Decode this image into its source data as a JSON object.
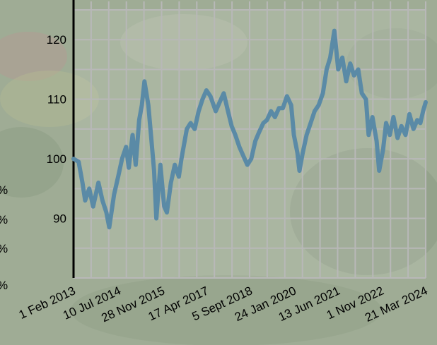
{
  "chart_data": {
    "type": "line",
    "title": "",
    "xlabel": "",
    "ylabel": "",
    "ylim": [
      80,
      125
    ],
    "xlim": [
      "2013-02-01",
      "2024-03-21"
    ],
    "y_ticks": [
      90,
      100,
      110,
      120
    ],
    "x_tick_labels": [
      "1 Feb 2013",
      "10 Jul 2014",
      "28 Nov 2015",
      "17 Apr 2017",
      "5 Sept 2018",
      "24 Jan 2020",
      "13 Jun 2021",
      "1 Nov 2022",
      "21 Mar 2024"
    ],
    "x_tick_dates": [
      "2013-02-01",
      "2014-07-10",
      "2015-11-28",
      "2017-04-17",
      "2018-09-05",
      "2020-01-24",
      "2021-06-13",
      "2022-11-01",
      "2024-03-21"
    ],
    "grid": true,
    "line_color": "#5a8aa6",
    "series": [
      {
        "points": [
          [
            "2013-02-01",
            100.0
          ],
          [
            "2013-04-01",
            99.5
          ],
          [
            "2013-05-15",
            96.0
          ],
          [
            "2013-06-15",
            93.0
          ],
          [
            "2013-08-01",
            95.0
          ],
          [
            "2013-09-15",
            92.0
          ],
          [
            "2013-11-15",
            96.0
          ],
          [
            "2014-01-01",
            93.0
          ],
          [
            "2014-02-15",
            91.0
          ],
          [
            "2014-03-20",
            88.5
          ],
          [
            "2014-05-15",
            94.0
          ],
          [
            "2014-07-01",
            97.0
          ],
          [
            "2014-08-15",
            100.0
          ],
          [
            "2014-10-01",
            102.0
          ],
          [
            "2014-11-01",
            98.5
          ],
          [
            "2014-12-15",
            104.0
          ],
          [
            "2015-01-20",
            99.0
          ],
          [
            "2015-03-01",
            106.5
          ],
          [
            "2015-04-01",
            109.0
          ],
          [
            "2015-05-01",
            113.0
          ],
          [
            "2015-06-15",
            109.0
          ],
          [
            "2015-07-15",
            104.0
          ],
          [
            "2015-08-20",
            98.0
          ],
          [
            "2015-09-15",
            90.0
          ],
          [
            "2015-11-01",
            99.0
          ],
          [
            "2015-12-15",
            92.0
          ],
          [
            "2016-01-15",
            91.0
          ],
          [
            "2016-03-01",
            96.0
          ],
          [
            "2016-04-15",
            99.0
          ],
          [
            "2016-06-01",
            97.0
          ],
          [
            "2016-07-01",
            100.0
          ],
          [
            "2016-09-01",
            105.0
          ],
          [
            "2016-10-15",
            106.0
          ],
          [
            "2016-12-01",
            105.0
          ],
          [
            "2017-01-15",
            108.0
          ],
          [
            "2017-03-01",
            110.0
          ],
          [
            "2017-04-15",
            111.5
          ],
          [
            "2017-06-01",
            110.5
          ],
          [
            "2017-08-01",
            108.0
          ],
          [
            "2017-09-15",
            109.5
          ],
          [
            "2017-11-01",
            111.0
          ],
          [
            "2017-12-20",
            108.0
          ],
          [
            "2018-02-01",
            105.5
          ],
          [
            "2018-03-15",
            104.0
          ],
          [
            "2018-05-01",
            102.0
          ],
          [
            "2018-06-15",
            100.5
          ],
          [
            "2018-08-01",
            99.0
          ],
          [
            "2018-09-15",
            100.0
          ],
          [
            "2018-11-01",
            103.0
          ],
          [
            "2018-12-15",
            104.5
          ],
          [
            "2019-02-01",
            106.0
          ],
          [
            "2019-03-15",
            106.5
          ],
          [
            "2019-05-01",
            108.0
          ],
          [
            "2019-06-15",
            107.0
          ],
          [
            "2019-08-01",
            108.5
          ],
          [
            "2019-09-15",
            108.5
          ],
          [
            "2019-11-01",
            110.5
          ],
          [
            "2019-12-20",
            109.0
          ],
          [
            "2020-01-20",
            104.0
          ],
          [
            "2020-03-01",
            101.0
          ],
          [
            "2020-03-25",
            98.0
          ],
          [
            "2020-05-01",
            101.0
          ],
          [
            "2020-06-15",
            104.0
          ],
          [
            "2020-08-01",
            106.0
          ],
          [
            "2020-09-15",
            108.0
          ],
          [
            "2020-11-01",
            109.0
          ],
          [
            "2020-12-20",
            111.0
          ],
          [
            "2021-02-01",
            115.0
          ],
          [
            "2021-03-15",
            117.0
          ],
          [
            "2021-05-01",
            121.5
          ],
          [
            "2021-06-15",
            115.0
          ],
          [
            "2021-08-01",
            117.0
          ],
          [
            "2021-09-15",
            113.0
          ],
          [
            "2021-11-01",
            116.0
          ],
          [
            "2021-12-15",
            114.0
          ],
          [
            "2022-02-01",
            115.0
          ],
          [
            "2022-03-15",
            111.0
          ],
          [
            "2022-05-01",
            110.0
          ],
          [
            "2022-06-01",
            104.0
          ],
          [
            "2022-07-15",
            107.0
          ],
          [
            "2022-09-01",
            103.0
          ],
          [
            "2022-10-01",
            98.0
          ],
          [
            "2022-11-15",
            101.5
          ],
          [
            "2022-12-20",
            106.0
          ],
          [
            "2023-02-01",
            104.0
          ],
          [
            "2023-03-15",
            107.0
          ],
          [
            "2023-05-01",
            103.5
          ],
          [
            "2023-06-15",
            105.5
          ],
          [
            "2023-08-01",
            104.0
          ],
          [
            "2023-09-15",
            107.5
          ],
          [
            "2023-11-01",
            105.0
          ],
          [
            "2023-12-15",
            106.5
          ],
          [
            "2024-01-20",
            106.0
          ],
          [
            "2024-02-20",
            108.0
          ],
          [
            "2024-03-21",
            109.5
          ]
        ]
      }
    ]
  },
  "side_labels": [
    "%",
    "%",
    "%",
    "%"
  ]
}
